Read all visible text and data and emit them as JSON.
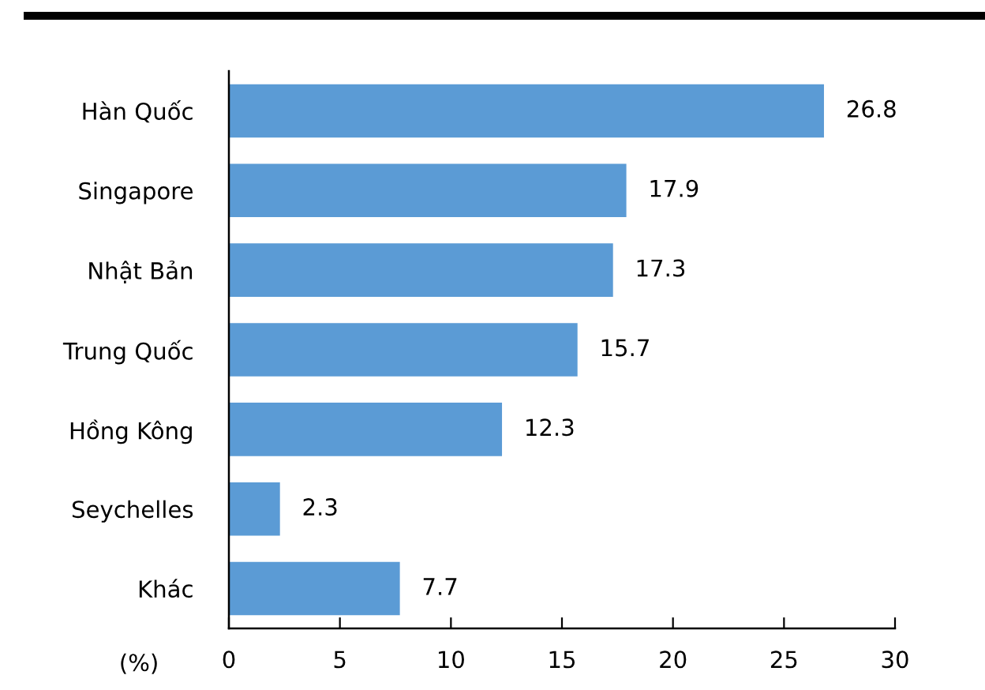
{
  "chart_data": {
    "type": "bar",
    "orientation": "horizontal",
    "categories": [
      "Hàn Quốc",
      "Singapore",
      "Nhật Bản",
      "Trung Quốc",
      "Hồng Kông",
      "Seychelles",
      "Khác"
    ],
    "values": [
      26.8,
      17.9,
      17.3,
      15.7,
      12.3,
      2.3,
      7.7
    ],
    "color": "#5b9bd5",
    "xlabel": "(%)",
    "xlim": [
      0,
      30
    ],
    "xticks": [
      0,
      5,
      10,
      15,
      20,
      25,
      30
    ],
    "grid": false,
    "legend": false,
    "data_labels": true
  }
}
